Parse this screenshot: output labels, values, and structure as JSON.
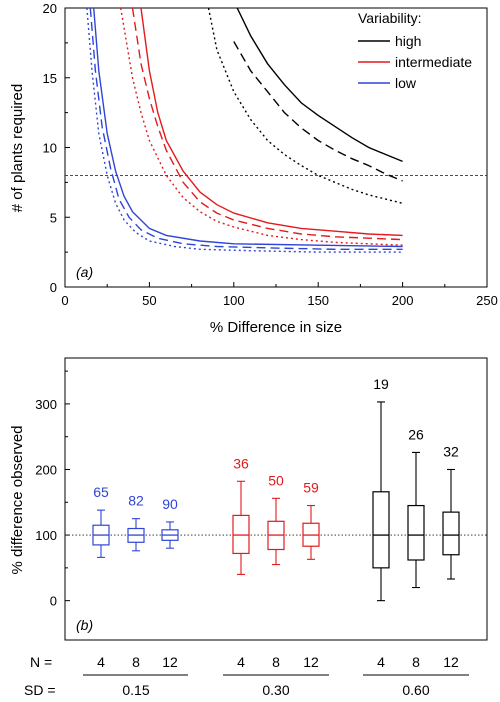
{
  "chart_data": [
    {
      "type": "line",
      "panel_label": "(a)",
      "xlabel": "% Difference in size",
      "ylabel": "# of plants required",
      "xlim": [
        0,
        250
      ],
      "ylim": [
        0,
        20
      ],
      "xticks": [
        "0",
        "50",
        "100",
        "150",
        "200",
        "250"
      ],
      "yticks": [
        "0",
        "5",
        "10",
        "15",
        "20"
      ],
      "grid": false,
      "reference_line": {
        "y": 8,
        "style": "dashed"
      },
      "legend": {
        "title": "Variability:",
        "position": "top-right",
        "entries": [
          {
            "label": "high",
            "color": "#000000"
          },
          {
            "label": "intermediate",
            "color": "#e41a1c"
          },
          {
            "label": "low",
            "color": "#2f45d6"
          }
        ]
      },
      "series": [
        {
          "group": "high",
          "color": "#000000",
          "style": "solid",
          "points": [
            [
              102,
              20
            ],
            [
              110,
              18
            ],
            [
              120,
              16
            ],
            [
              130,
              14.5
            ],
            [
              140,
              13.2
            ],
            [
              150,
              12.3
            ],
            [
              160,
              11.5
            ],
            [
              170,
              10.7
            ],
            [
              180,
              10
            ],
            [
              190,
              9.5
            ],
            [
              200,
              9
            ]
          ]
        },
        {
          "group": "high",
          "color": "#000000",
          "style": "dashed",
          "points": [
            [
              100,
              17.6
            ],
            [
              110,
              15.5
            ],
            [
              120,
              14
            ],
            [
              130,
              12.5
            ],
            [
              140,
              11.4
            ],
            [
              150,
              10.5
            ],
            [
              160,
              9.8
            ],
            [
              170,
              9.2
            ],
            [
              180,
              8.7
            ],
            [
              190,
              8.1
            ],
            [
              200,
              7.6
            ]
          ]
        },
        {
          "group": "high",
          "color": "#000000",
          "style": "dotted",
          "points": [
            [
              85,
              20
            ],
            [
              90,
              17
            ],
            [
              100,
              14
            ],
            [
              110,
              12
            ],
            [
              120,
              10.5
            ],
            [
              130,
              9.5
            ],
            [
              140,
              8.7
            ],
            [
              150,
              8
            ],
            [
              160,
              7.5
            ],
            [
              170,
              7
            ],
            [
              180,
              6.6
            ],
            [
              190,
              6.3
            ],
            [
              200,
              6
            ]
          ]
        },
        {
          "group": "intermediate",
          "color": "#e41a1c",
          "style": "solid",
          "points": [
            [
              45,
              20
            ],
            [
              50,
              15.5
            ],
            [
              55,
              12.5
            ],
            [
              60,
              10.5
            ],
            [
              70,
              8.3
            ],
            [
              80,
              6.8
            ],
            [
              90,
              5.9
            ],
            [
              100,
              5.3
            ],
            [
              120,
              4.6
            ],
            [
              140,
              4.2
            ],
            [
              160,
              4
            ],
            [
              180,
              3.8
            ],
            [
              200,
              3.7
            ]
          ]
        },
        {
          "group": "intermediate",
          "color": "#e41a1c",
          "style": "dashed",
          "points": [
            [
              40,
              20
            ],
            [
              45,
              16
            ],
            [
              50,
              13.5
            ],
            [
              55,
              11.5
            ],
            [
              60,
              9.8
            ],
            [
              70,
              7.5
            ],
            [
              80,
              6.1
            ],
            [
              90,
              5.3
            ],
            [
              100,
              4.8
            ],
            [
              120,
              4.2
            ],
            [
              140,
              3.8
            ],
            [
              160,
              3.6
            ],
            [
              180,
              3.5
            ],
            [
              200,
              3.4
            ]
          ]
        },
        {
          "group": "intermediate",
          "color": "#e41a1c",
          "style": "dotted",
          "points": [
            [
              33,
              20
            ],
            [
              40,
              15
            ],
            [
              45,
              12.5
            ],
            [
              50,
              10.5
            ],
            [
              60,
              8
            ],
            [
              70,
              6.4
            ],
            [
              80,
              5.4
            ],
            [
              90,
              4.7
            ],
            [
              100,
              4.3
            ],
            [
              120,
              3.7
            ],
            [
              140,
              3.4
            ],
            [
              160,
              3.2
            ],
            [
              180,
              3.1
            ],
            [
              200,
              3
            ]
          ]
        },
        {
          "group": "low",
          "color": "#2f45d6",
          "style": "solid",
          "points": [
            [
              17,
              20
            ],
            [
              20,
              15.5
            ],
            [
              25,
              11
            ],
            [
              30,
              8.3
            ],
            [
              35,
              6.5
            ],
            [
              40,
              5.4
            ],
            [
              50,
              4.2
            ],
            [
              60,
              3.7
            ],
            [
              80,
              3.3
            ],
            [
              100,
              3.1
            ],
            [
              150,
              3
            ],
            [
              200,
              2.9
            ]
          ]
        },
        {
          "group": "low",
          "color": "#2f45d6",
          "style": "dashed",
          "points": [
            [
              15,
              20
            ],
            [
              18,
              15.5
            ],
            [
              22,
              11.5
            ],
            [
              27,
              8.5
            ],
            [
              32,
              6.3
            ],
            [
              38,
              5
            ],
            [
              45,
              4.1
            ],
            [
              55,
              3.5
            ],
            [
              70,
              3.1
            ],
            [
              90,
              2.9
            ],
            [
              120,
              2.8
            ],
            [
              160,
              2.7
            ],
            [
              200,
              2.7
            ]
          ]
        },
        {
          "group": "low",
          "color": "#2f45d6",
          "style": "dotted",
          "points": [
            [
              13,
              20
            ],
            [
              16,
              15.5
            ],
            [
              20,
              11
            ],
            [
              25,
              8
            ],
            [
              30,
              6
            ],
            [
              35,
              4.8
            ],
            [
              42,
              3.9
            ],
            [
              50,
              3.3
            ],
            [
              65,
              2.9
            ],
            [
              80,
              2.7
            ],
            [
              110,
              2.6
            ],
            [
              150,
              2.5
            ],
            [
              200,
              2.5
            ]
          ]
        }
      ]
    },
    {
      "type": "box",
      "panel_label": "(b)",
      "ylabel": "% difference observed",
      "ylim": [
        -60,
        370
      ],
      "yticks": [
        "0",
        "100",
        "200",
        "300"
      ],
      "grid": false,
      "reference_line": {
        "y": 100,
        "style": "dotted"
      },
      "row_labels": {
        "n": "N =",
        "sd": "SD ="
      },
      "groups": [
        {
          "sd": "0.15",
          "color": "#2f45d6",
          "boxes": [
            {
              "n": "4",
              "label": "65",
              "whisker_low": 66,
              "q1": 85,
              "median": 100,
              "q3": 115,
              "whisker_high": 138
            },
            {
              "n": "8",
              "label": "82",
              "whisker_low": 76,
              "q1": 89,
              "median": 100,
              "q3": 110,
              "whisker_high": 125
            },
            {
              "n": "12",
              "label": "90",
              "whisker_low": 80,
              "q1": 92,
              "median": 100,
              "q3": 108,
              "whisker_high": 120
            }
          ]
        },
        {
          "sd": "0.30",
          "color": "#e41a1c",
          "boxes": [
            {
              "n": "4",
              "label": "36",
              "whisker_low": 40,
              "q1": 72,
              "median": 100,
              "q3": 130,
              "whisker_high": 182
            },
            {
              "n": "8",
              "label": "50",
              "whisker_low": 55,
              "q1": 78,
              "median": 100,
              "q3": 121,
              "whisker_high": 156
            },
            {
              "n": "12",
              "label": "59",
              "whisker_low": 63,
              "q1": 83,
              "median": 100,
              "q3": 118,
              "whisker_high": 145
            }
          ]
        },
        {
          "sd": "0.60",
          "color": "#000000",
          "boxes": [
            {
              "n": "4",
              "label": "19",
              "whisker_low": 0,
              "q1": 50,
              "median": 100,
              "q3": 166,
              "whisker_high": 303
            },
            {
              "n": "8",
              "label": "26",
              "whisker_low": 20,
              "q1": 62,
              "median": 100,
              "q3": 145,
              "whisker_high": 226
            },
            {
              "n": "12",
              "label": "32",
              "whisker_low": 33,
              "q1": 70,
              "median": 100,
              "q3": 135,
              "whisker_high": 200
            }
          ]
        }
      ]
    }
  ]
}
